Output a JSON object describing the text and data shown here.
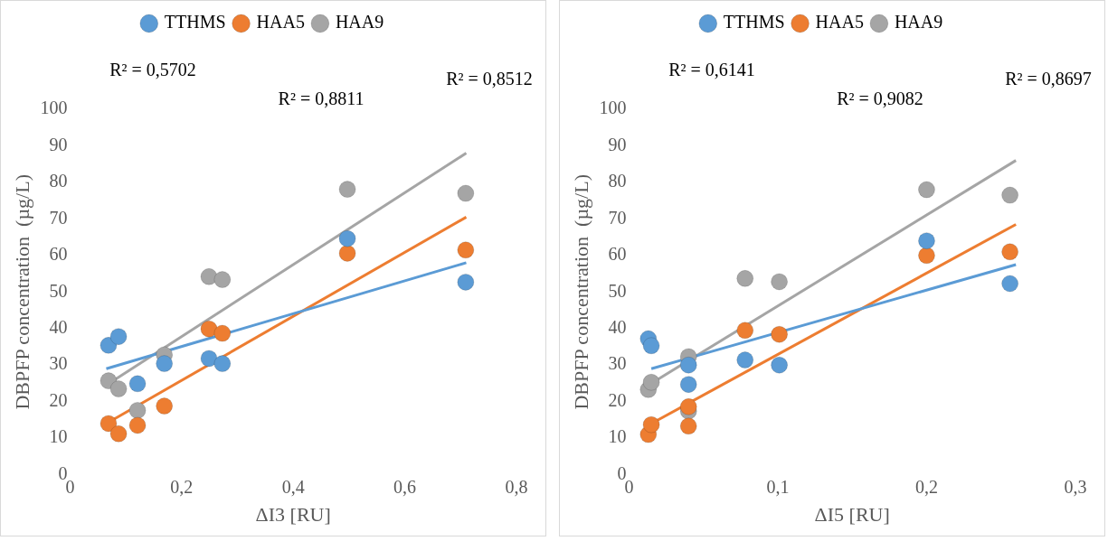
{
  "chart_data": [
    {
      "type": "scatter",
      "xlabel": "ΔI3 [RU]",
      "ylabel": "DBPFP concentration  (µg/L)",
      "xlim": [
        0,
        0.8
      ],
      "xticks": [
        0,
        {
          "value": 0.2,
          "label": "0,2"
        },
        {
          "value": 0.4,
          "label": "0,4"
        },
        {
          "value": 0.6,
          "label": "0,6"
        },
        {
          "value": 0.8,
          "label": "0,8"
        }
      ],
      "ylim": [
        0,
        100
      ],
      "yticks": [
        0,
        10,
        20,
        30,
        40,
        50,
        60,
        70,
        80,
        90,
        100
      ],
      "grid": false,
      "legend": "top",
      "marker": "circle",
      "annotations": [
        "R² = 0,5702",
        "R² = 0,8811",
        "R² = 0,8512"
      ],
      "series": [
        {
          "name": "TTHMS",
          "color": "#5b9bd5",
          "x": [
            0.069,
            0.087,
            0.121,
            0.169,
            0.249,
            0.273,
            0.497,
            0.709
          ],
          "values": [
            35.4,
            37.8,
            24.9,
            30.4,
            31.8,
            30.4,
            64.6,
            52.7
          ]
        },
        {
          "name": "HAA5",
          "color": "#ed7d31",
          "x": [
            0.069,
            0.087,
            0.121,
            0.169,
            0.249,
            0.273,
            0.497,
            0.709
          ],
          "values": [
            14,
            11.2,
            13.5,
            18.8,
            39.9,
            38.7,
            60.6,
            61.5
          ]
        },
        {
          "name": "HAA9",
          "color": "#a5a5a5",
          "x": [
            0.069,
            0.087,
            0.121,
            0.169,
            0.249,
            0.273,
            0.497,
            0.709
          ],
          "values": [
            25.7,
            23.5,
            17.6,
            32.8,
            54.2,
            53.4,
            78.1,
            77
          ]
        },
        {
          "type": "line",
          "marker": "none",
          "color": "#5b9bd5",
          "x": [
            0.065,
            0.71
          ],
          "values": [
            29,
            58
          ]
        },
        {
          "type": "line",
          "marker": "none",
          "color": "#ed7d31",
          "x": [
            0.065,
            0.71
          ],
          "values": [
            14,
            70.5
          ]
        },
        {
          "type": "line",
          "marker": "none",
          "color": "#a5a5a5",
          "x": [
            0.075,
            0.71
          ],
          "values": [
            25.5,
            88
          ]
        }
      ]
    },
    {
      "type": "scatter",
      "xlabel": "ΔI5 [RU]",
      "ylabel": "DBPFP concentration  (µg/L)",
      "xlim": [
        0,
        0.3
      ],
      "xticks": [
        0,
        {
          "value": 0.1,
          "label": "0,1"
        },
        {
          "value": 0.2,
          "label": "0,2"
        },
        {
          "value": 0.3,
          "label": "0,3"
        }
      ],
      "ylim": [
        0,
        100
      ],
      "yticks": [
        0,
        10,
        20,
        30,
        40,
        50,
        60,
        70,
        80,
        90,
        100
      ],
      "grid": false,
      "legend": "top",
      "marker": "circle",
      "annotations": [
        "R² = 0,6141",
        "R² = 0,9082",
        "R² = 0,8697"
      ],
      "series": [
        {
          "name": "TTHMS",
          "color": "#5b9bd5",
          "x": [
            0.013,
            0.015,
            0.04,
            0.04,
            0.078,
            0.101,
            0.2,
            0.256
          ],
          "values": [
            37.2,
            35.3,
            30,
            24.7,
            31.4,
            30,
            64,
            52.3
          ]
        },
        {
          "name": "HAA5",
          "color": "#ed7d31",
          "x": [
            0.013,
            0.015,
            0.04,
            0.04,
            0.078,
            0.101,
            0.2,
            0.256
          ],
          "values": [
            11,
            13.7,
            13.3,
            18.6,
            39.5,
            38.4,
            60,
            61
          ]
        },
        {
          "name": "HAA9",
          "color": "#a5a5a5",
          "x": [
            0.013,
            0.015,
            0.04,
            0.04,
            0.078,
            0.101,
            0.2,
            0.256
          ],
          "values": [
            23.3,
            25.3,
            32.3,
            17.4,
            53.7,
            52.8,
            78,
            76.5
          ]
        },
        {
          "type": "line",
          "marker": "none",
          "color": "#5b9bd5",
          "x": [
            0.015,
            0.26
          ],
          "values": [
            29,
            57.5
          ]
        },
        {
          "type": "line",
          "marker": "none",
          "color": "#ed7d31",
          "x": [
            0.015,
            0.26
          ],
          "values": [
            14,
            68.5
          ]
        },
        {
          "type": "line",
          "marker": "none",
          "color": "#a5a5a5",
          "x": [
            0.015,
            0.26
          ],
          "values": [
            25,
            86
          ]
        }
      ]
    }
  ]
}
